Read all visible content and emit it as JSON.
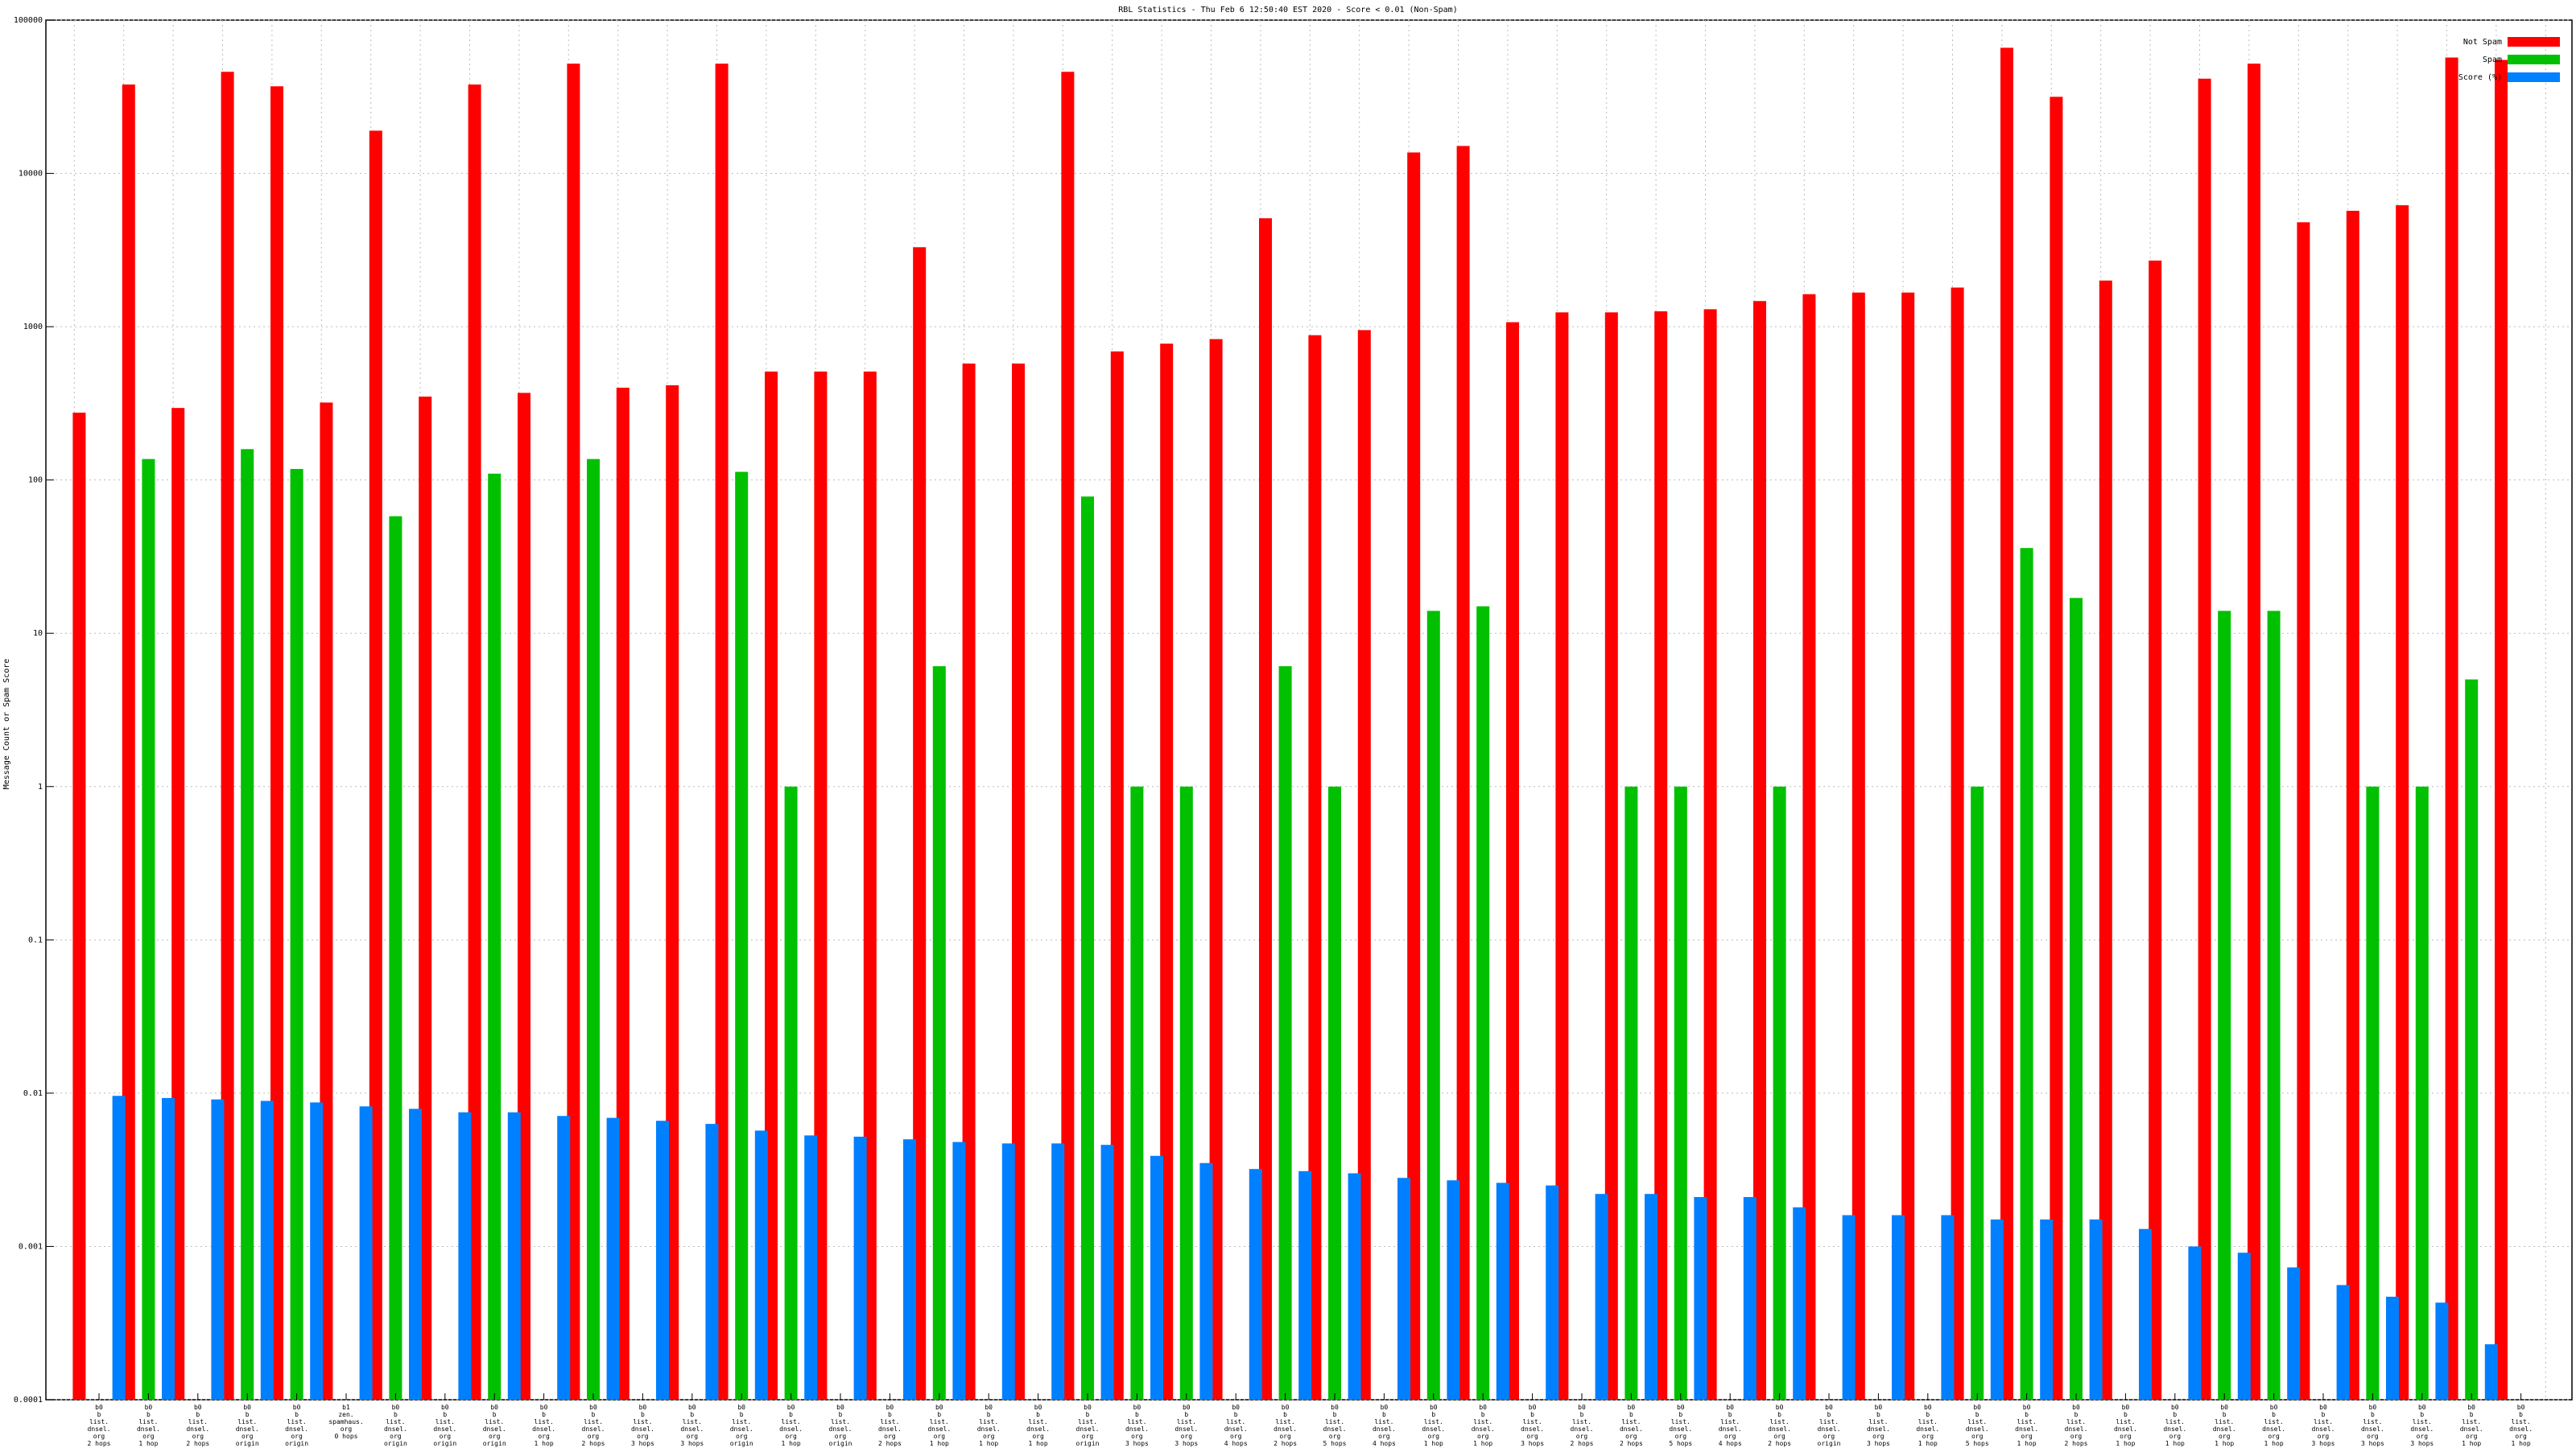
{
  "chart_data": {
    "type": "bar",
    "title": "RBL Statistics - Thu Feb  6 12:50:40 EST 2020 - Score < 0.01 (Non-Spam)",
    "y_label": "Message Count or Spam Score",
    "log_scale": true,
    "grid": true,
    "legend": "upper right",
    "ylim": [
      0.0001,
      100000
    ],
    "yticks": [
      0.0001,
      0.001,
      0.01,
      0.1,
      1,
      10,
      100,
      1000,
      10000,
      100000
    ],
    "categories": [
      "b0\nb\nlist.\ndnsel.\norg\n2 hops",
      "b0\nb\nlist.\ndnsel.\norg\n1 hop",
      "b0\nb\nlist.\ndnsel.\norg\n2 hops",
      "b0\nb\nlist.\ndnsel.\norg\norigin",
      "b0\nb\nlist.\ndnsel.\norg\norigin",
      "b1\nzen.\nspamhaus.\norg\n0 hops",
      "b0\nb\nlist.\ndnsel.\norg\norigin",
      "b0\nb\nlist.\ndnsel.\norg\norigin",
      "b0\nb\nlist.\ndnsel.\norg\norigin",
      "b0\nb\nlist.\ndnsel.\norg\n1 hop",
      "b0\nb\nlist.\ndnsel.\norg\n2 hops",
      "b0\nb\nlist.\ndnsel.\norg\n3 hops",
      "b0\nb\nlist.\ndnsel.\norg\n3 hops",
      "b0\nb\nlist.\ndnsel.\norg\norigin",
      "b0\nb\nlist.\ndnsel.\norg\n1 hop",
      "b0\nb\nlist.\ndnsel.\norg\norigin",
      "b0\nb\nlist.\ndnsel.\norg\n2 hops",
      "b0\nb\nlist.\ndnsel.\norg\n1 hop",
      "b0\nb\nlist.\ndnsel.\norg\n1 hop",
      "b0\nb\nlist.\ndnsel.\norg\n1 hop",
      "b0\nb\nlist.\ndnsel.\norg\norigin",
      "b0\nb\nlist.\ndnsel.\norg\n3 hops",
      "b0\nb\nlist.\ndnsel.\norg\n3 hops",
      "b0\nb\nlist.\ndnsel.\norg\n4 hops",
      "b0\nb\nlist.\ndnsel.\norg\n2 hops",
      "b0\nb\nlist.\ndnsel.\norg\n5 hops",
      "b0\nb\nlist.\ndnsel.\norg\n4 hops",
      "b0\nb\nlist.\ndnsel.\norg\n1 hop",
      "b0\nb\nlist.\ndnsel.\norg\n1 hop",
      "b0\nb\nlist.\ndnsel.\norg\n3 hops",
      "b0\nb\nlist.\ndnsel.\norg\n2 hops",
      "b0\nb\nlist.\ndnsel.\norg\n2 hops",
      "b0\nb\nlist.\ndnsel.\norg\n5 hops",
      "b0\nb\nlist.\ndnsel.\norg\n4 hops",
      "b0\nb\nlist.\ndnsel.\norg\n2 hops",
      "b0\nb\nlist.\ndnsel.\norg\norigin",
      "b0\nb\nlist.\ndnsel.\norg\n3 hops",
      "b0\nb\nlist.\ndnsel.\norg\n1 hop",
      "b0\nb\nlist.\ndnsel.\norg\n5 hops",
      "b0\nb\nlist.\ndnsel.\norg\n1 hop",
      "b0\nb\nlist.\ndnsel.\norg\n2 hops",
      "b0\nb\nlist.\ndnsel.\norg\n1 hop",
      "b0\nb\nlist.\ndnsel.\norg\n1 hop",
      "b0\nb\nlist.\ndnsel.\norg\n1 hop",
      "b0\nb\nlist.\ndnsel.\norg\n1 hop",
      "b0\nb\nlist.\ndnsel.\norg\n3 hops",
      "b0\nb\nlist.\ndnsel.\norg\n3 hops",
      "b0\nb\nlist.\ndnsel.\norg\n3 hops",
      "b0\nb\nlist.\ndnsel.\norg\n1 hop",
      "b0\nb\nlist.\ndnsel.\norg\n1 hop"
    ],
    "series": [
      {
        "name": "Not Spam",
        "color": "#ff0000",
        "values": [
          275,
          38000,
          295,
          46000,
          37000,
          320,
          19000,
          350,
          38000,
          370,
          52000,
          400,
          415,
          52000,
          510,
          510,
          510,
          3300,
          575,
          575,
          46000,
          690,
          775,
          830,
          5100,
          880,
          950,
          13700,
          15100,
          1070,
          1240,
          1240,
          1260,
          1300,
          1470,
          1630,
          1670,
          1670,
          1800,
          66000,
          31600,
          2000,
          2700,
          41500,
          52000,
          4800,
          5700,
          6200,
          57000,
          55000
        ]
      },
      {
        "name": "Spam",
        "color": "#00c000",
        "values": [
          null,
          137,
          null,
          159,
          118,
          null,
          58,
          null,
          110,
          null,
          137,
          null,
          null,
          113,
          1,
          null,
          null,
          6.1,
          null,
          null,
          78,
          1,
          1,
          null,
          6.1,
          1,
          null,
          14,
          15,
          null,
          null,
          1,
          1,
          null,
          1,
          null,
          null,
          null,
          1,
          36,
          17,
          null,
          null,
          14,
          14,
          null,
          1,
          1,
          5,
          null
        ]
      },
      {
        "name": "Score (%)",
        "color": "#0080ff",
        "values": [
          0.0096,
          0.0093,
          0.0091,
          0.0089,
          0.0087,
          0.0082,
          0.0079,
          0.0075,
          0.0075,
          0.0071,
          0.0069,
          0.0066,
          0.0063,
          0.0057,
          0.0053,
          0.0052,
          0.005,
          0.0048,
          0.0047,
          0.0047,
          0.0046,
          0.0039,
          0.0035,
          0.0032,
          0.0031,
          0.003,
          0.0028,
          0.0027,
          0.0026,
          0.0025,
          0.0022,
          0.0022,
          0.0021,
          0.0021,
          0.0018,
          0.0016,
          0.0016,
          0.0016,
          0.0015,
          0.0015,
          0.0015,
          0.0013,
          0.001,
          0.00091,
          0.00073,
          0.00056,
          0.00047,
          0.00043,
          0.00023,
          null
        ]
      }
    ]
  }
}
